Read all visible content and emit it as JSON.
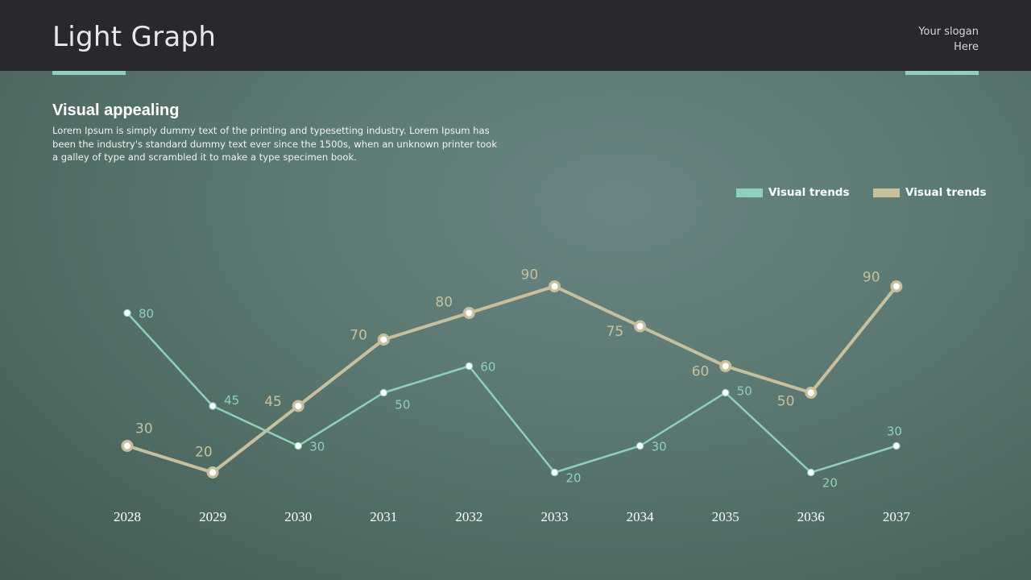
{
  "header": {
    "title": "Light Graph",
    "slogan_line1": "Your slogan",
    "slogan_line2": "Here"
  },
  "content": {
    "heading": "Visual appealing",
    "paragraph": "Lorem Ipsum is simply dummy text of the printing and typesetting industry. Lorem Ipsum has been the industry's standard dummy text ever since the 1500s, when an unknown printer took a galley of type and scrambled it to make a type specimen book."
  },
  "colors": {
    "series_teal": "#8fd0bd",
    "series_tan": "#c8c09c",
    "header_bg": "#28292d"
  },
  "chart_data": {
    "type": "line",
    "title": "",
    "xlabel": "",
    "ylabel": "",
    "categories": [
      "2028",
      "2029",
      "2030",
      "2031",
      "2032",
      "2033",
      "2034",
      "2035",
      "2036",
      "2037"
    ],
    "ylim": [
      0,
      100
    ],
    "grid": false,
    "legend_position": "top-right",
    "series": [
      {
        "name": "Visual trends",
        "color": "#8fd0bd",
        "values": [
          80,
          45,
          30,
          50,
          60,
          20,
          30,
          50,
          20,
          30
        ]
      },
      {
        "name": "Visual trends",
        "color": "#c8c09c",
        "values": [
          30,
          20,
          45,
          70,
          80,
          90,
          75,
          60,
          50,
          90
        ]
      }
    ]
  }
}
